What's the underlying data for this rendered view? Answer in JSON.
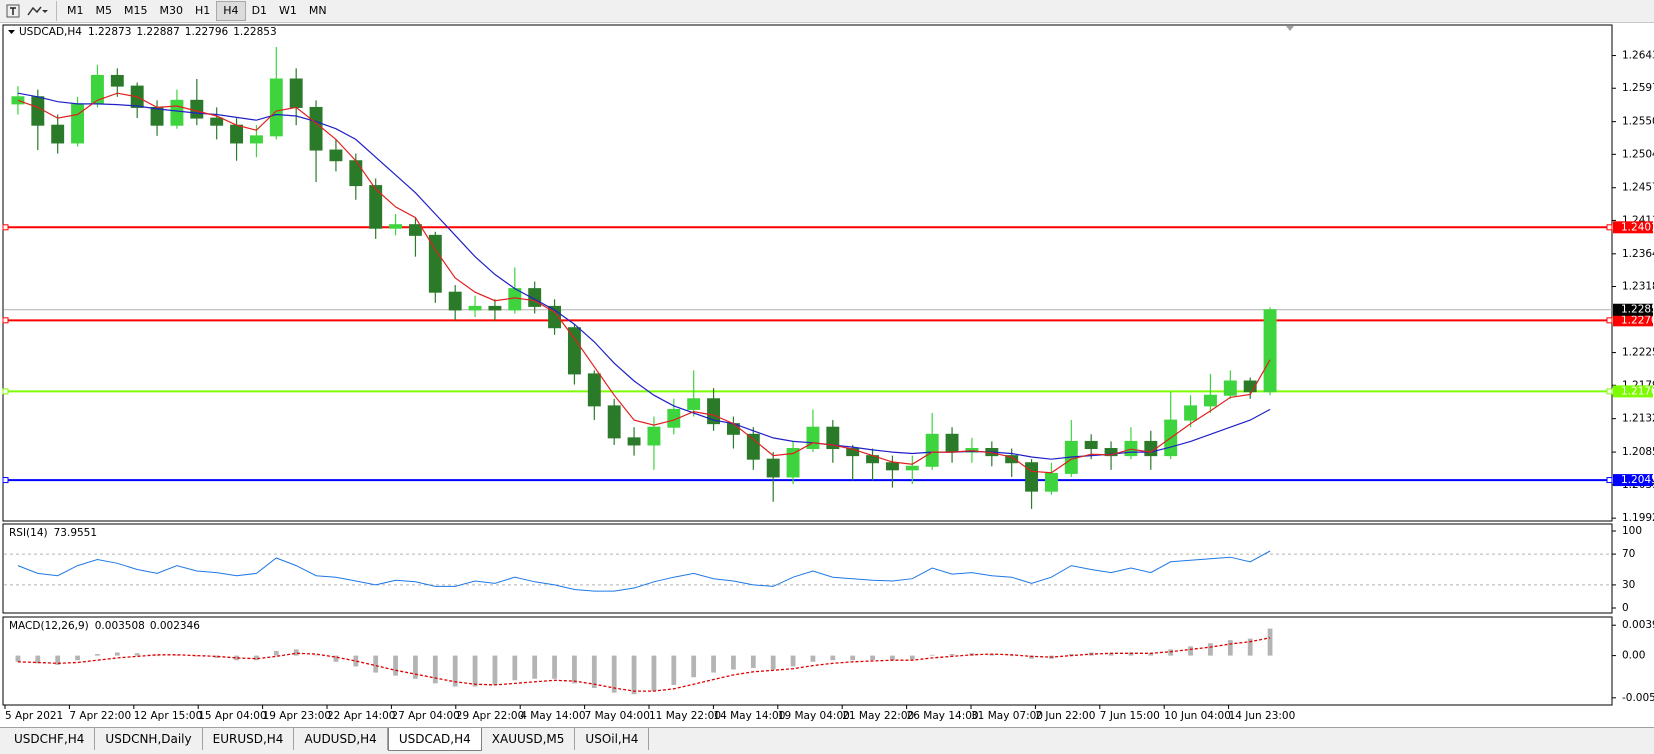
{
  "toolbar": {
    "timeframes": [
      {
        "label": "M1"
      },
      {
        "label": "M5"
      },
      {
        "label": "M15"
      },
      {
        "label": "M30"
      },
      {
        "label": "H1"
      },
      {
        "label": "H4",
        "active": true
      },
      {
        "label": "D1"
      },
      {
        "label": "W1"
      },
      {
        "label": "MN"
      }
    ]
  },
  "chart_data": [
    {
      "type": "candlestick",
      "title": "USDCAD,H4",
      "last_bar": [
        1.22873,
        1.22887,
        1.22796,
        1.22853
      ],
      "up_color": "#3ed43e",
      "down_color": "#2a7a2a",
      "open": [
        1.2575,
        1.2585,
        1.2545,
        1.252,
        1.2575,
        1.2615,
        1.26,
        1.257,
        1.2545,
        1.258,
        1.2555,
        1.2545,
        1.252,
        1.253,
        1.261,
        1.257,
        1.251,
        1.2495,
        1.246,
        1.24,
        1.2405,
        1.239,
        1.231,
        1.2285,
        1.229,
        1.2285,
        1.2315,
        1.229,
        1.226,
        1.2195,
        1.215,
        1.2105,
        1.2095,
        1.212,
        1.2145,
        1.216,
        1.2125,
        1.211,
        1.2075,
        1.205,
        1.209,
        1.212,
        1.209,
        1.208,
        1.207,
        1.206,
        1.2065,
        1.211,
        1.2085,
        1.209,
        1.208,
        1.207,
        1.203,
        1.2055,
        1.21,
        1.209,
        1.208,
        1.21,
        1.208,
        1.213,
        1.215,
        1.2165,
        1.2185,
        1.217
      ],
      "high": [
        1.26,
        1.2595,
        1.256,
        1.2585,
        1.263,
        1.2625,
        1.2605,
        1.258,
        1.2595,
        1.261,
        1.257,
        1.2555,
        1.2545,
        1.2655,
        1.2625,
        1.258,
        1.2525,
        1.2505,
        1.247,
        1.242,
        1.2415,
        1.2395,
        1.232,
        1.2305,
        1.23,
        1.2345,
        1.2325,
        1.23,
        1.2265,
        1.22,
        1.216,
        1.212,
        1.2135,
        1.216,
        1.22,
        1.2175,
        1.2135,
        1.212,
        1.2085,
        1.21,
        1.2145,
        1.213,
        1.2095,
        1.209,
        1.208,
        1.208,
        1.214,
        1.212,
        1.2105,
        1.21,
        1.209,
        1.2075,
        1.207,
        1.213,
        1.211,
        1.21,
        1.212,
        1.2115,
        1.217,
        1.2165,
        1.2195,
        1.22,
        1.219,
        1.22887
      ],
      "low": [
        1.256,
        1.251,
        1.2505,
        1.2515,
        1.257,
        1.2585,
        1.2555,
        1.253,
        1.254,
        1.2545,
        1.2525,
        1.2495,
        1.25,
        1.2525,
        1.2545,
        1.2465,
        1.248,
        1.244,
        1.2385,
        1.239,
        1.236,
        1.2295,
        1.227,
        1.2275,
        1.227,
        1.228,
        1.228,
        1.225,
        1.218,
        1.213,
        1.2095,
        1.208,
        1.206,
        1.211,
        1.2135,
        1.2115,
        1.209,
        1.206,
        1.2015,
        1.204,
        1.2085,
        1.207,
        1.2045,
        1.2045,
        1.2035,
        1.204,
        1.206,
        1.207,
        1.207,
        1.2065,
        1.205,
        1.2005,
        1.2025,
        1.205,
        1.2075,
        1.206,
        1.2075,
        1.206,
        1.2075,
        1.212,
        1.214,
        1.216,
        1.216,
        1.2165
      ],
      "close": [
        1.2585,
        1.2545,
        1.252,
        1.2575,
        1.2615,
        1.26,
        1.257,
        1.2545,
        1.258,
        1.2555,
        1.2545,
        1.252,
        1.253,
        1.261,
        1.257,
        1.251,
        1.2495,
        1.246,
        1.24,
        1.2405,
        1.239,
        1.231,
        1.2285,
        1.229,
        1.2285,
        1.2315,
        1.229,
        1.226,
        1.2195,
        1.215,
        1.2105,
        1.2095,
        1.212,
        1.2145,
        1.216,
        1.2125,
        1.211,
        1.2075,
        1.205,
        1.209,
        1.212,
        1.209,
        1.208,
        1.207,
        1.206,
        1.2065,
        1.211,
        1.2085,
        1.209,
        1.208,
        1.207,
        1.203,
        1.2055,
        1.21,
        1.209,
        1.208,
        1.21,
        1.208,
        1.213,
        1.215,
        1.2165,
        1.2185,
        1.217,
        1.22853
      ],
      "overlays": [
        {
          "color": "#2020c8",
          "values": [
            1.259,
            1.2585,
            1.2578,
            1.2575,
            1.2575,
            1.2574,
            1.2572,
            1.2568,
            1.2565,
            1.2562,
            1.256,
            1.2556,
            1.2552,
            1.256,
            1.2558,
            1.255,
            1.254,
            1.2525,
            1.25,
            1.2475,
            1.245,
            1.242,
            1.239,
            1.236,
            1.2335,
            1.2315,
            1.23,
            1.2285,
            1.2265,
            1.224,
            1.221,
            1.2185,
            1.2165,
            1.215,
            1.214,
            1.213,
            1.2125,
            1.2115,
            1.2105,
            1.21,
            1.2098,
            1.2095,
            1.2092,
            1.2088,
            1.2085,
            1.2083,
            1.2085,
            1.2085,
            1.2086,
            1.2085,
            1.2083,
            1.2078,
            1.2075,
            1.2078,
            1.208,
            1.2082,
            1.2085,
            1.2085,
            1.2092,
            1.21,
            1.211,
            1.212,
            1.213,
            1.2145
          ]
        },
        {
          "color": "#e02020",
          "values": [
            1.258,
            1.257,
            1.2555,
            1.256,
            1.258,
            1.259,
            1.2585,
            1.257,
            1.2572,
            1.2565,
            1.2558,
            1.2545,
            1.2538,
            1.2565,
            1.257,
            1.2548,
            1.2525,
            1.2495,
            1.2455,
            1.243,
            1.2415,
            1.237,
            1.233,
            1.231,
            1.2298,
            1.2302,
            1.2298,
            1.2282,
            1.2245,
            1.2205,
            1.2165,
            1.213,
            1.2123,
            1.213,
            1.2142,
            1.2137,
            1.2125,
            1.2103,
            1.208,
            1.2083,
            1.2098,
            1.2095,
            1.2089,
            1.208,
            1.2071,
            1.2068,
            1.2085,
            1.2085,
            1.2087,
            1.2084,
            1.2078,
            1.2058,
            1.2056,
            1.2075,
            1.2082,
            1.2081,
            1.2089,
            1.2085,
            1.2105,
            1.2125,
            1.2143,
            1.2162,
            1.2166,
            1.2215
          ]
        }
      ],
      "levels": [
        {
          "value": 1.24013,
          "color": "#ff0000"
        },
        {
          "value": 1.22704,
          "color": "#ff0000"
        },
        {
          "value": 1.21704,
          "color": "#7cfc00"
        },
        {
          "value": 1.20456,
          "color": "#0000ff"
        }
      ],
      "ylim": [
        1.1988,
        1.2686
      ],
      "yticks": [
        {
          "value": 1.2643,
          "label": "1.26430"
        },
        {
          "value": 1.2597,
          "label": "1.25970"
        },
        {
          "value": 1.255,
          "label": "1.25500"
        },
        {
          "value": 1.2504,
          "label": "1.25040"
        },
        {
          "value": 1.2457,
          "label": "1.24570"
        },
        {
          "value": 1.2411,
          "label": "1.24110"
        },
        {
          "value": 1.2364,
          "label": "1.23640"
        },
        {
          "value": 1.2318,
          "label": "1.23180"
        },
        {
          "value": 1.2225,
          "label": "1.22250"
        },
        {
          "value": 1.2179,
          "label": "1.21790"
        },
        {
          "value": 1.2132,
          "label": "1.21320"
        },
        {
          "value": 1.2085,
          "label": "1.20850"
        },
        {
          "value": 1.2039,
          "label": "1.20390"
        },
        {
          "value": 1.1992,
          "label": "1.19920"
        }
      ],
      "time_labels": [
        "5 Apr 2021",
        "7 Apr 22:00",
        "12 Apr 15:00",
        "15 Apr 04:00",
        "19 Apr 23:00",
        "22 Apr 14:00",
        "27 Apr 04:00",
        "29 Apr 22:00",
        "4 May 14:00",
        "7 May 04:00",
        "11 May 22:00",
        "14 May 14:00",
        "19 May 04:00",
        "21 May 22:00",
        "26 May 14:00",
        "31 May 07:00",
        "2 Jun 22:00",
        "7 Jun 15:00",
        "10 Jun 04:00",
        "14 Jun 23:00"
      ]
    },
    {
      "type": "line",
      "title": "RSI(14)",
      "readout": [
        73.9551
      ],
      "color": "#1e78e6",
      "values": [
        55,
        45,
        42,
        55,
        63,
        58,
        50,
        45,
        55,
        48,
        46,
        42,
        45,
        65,
        55,
        42,
        40,
        35,
        30,
        36,
        34,
        28,
        28,
        35,
        32,
        40,
        34,
        30,
        24,
        22,
        22,
        26,
        34,
        40,
        45,
        38,
        35,
        30,
        28,
        40,
        48,
        40,
        38,
        36,
        35,
        38,
        52,
        44,
        46,
        42,
        40,
        32,
        40,
        55,
        50,
        46,
        52,
        46,
        60,
        62,
        64,
        66,
        60,
        74
      ],
      "ylim": [
        0,
        100
      ],
      "yticks": [
        100,
        70,
        30,
        0
      ],
      "levels": [
        70,
        30
      ]
    },
    {
      "type": "bar",
      "title": "MACD(12,26,9)",
      "readout": [
        0.003508,
        0.002346
      ],
      "series": [
        {
          "color": "#b4b4b4",
          "values": [
            -0.0008,
            -0.001,
            -0.0012,
            -0.0006,
            0.0002,
            0.0004,
            0.0003,
            0.0,
            0.0001,
            -0.0001,
            -0.0003,
            -0.0006,
            -0.0006,
            0.0006,
            0.0008,
            0.0,
            -0.0008,
            -0.0014,
            -0.0022,
            -0.0026,
            -0.003,
            -0.0036,
            -0.004,
            -0.004,
            -0.0038,
            -0.0032,
            -0.003,
            -0.003,
            -0.0036,
            -0.0042,
            -0.0048,
            -0.005,
            -0.0046,
            -0.0038,
            -0.0028,
            -0.0022,
            -0.0018,
            -0.0016,
            -0.0018,
            -0.0014,
            -0.0008,
            -0.0006,
            -0.0006,
            -0.0006,
            -0.0006,
            -0.0005,
            0.0001,
            0.0002,
            0.0003,
            0.0002,
            0.0,
            -0.0004,
            -0.0004,
            0.0002,
            0.0004,
            0.0003,
            0.0004,
            0.0003,
            0.0008,
            0.0012,
            0.0016,
            0.002,
            0.0022,
            0.0035
          ]
        },
        {
          "type": "line",
          "style": "dashed",
          "color": "#e00000",
          "values": [
            -0.0008,
            -0.0009,
            -0.001,
            -0.0009,
            -0.0006,
            -0.0003,
            -0.0001,
            0.0001,
            0.0001,
            0.0,
            -0.0001,
            -0.0003,
            -0.0004,
            -0.0001,
            0.0003,
            0.0002,
            -0.0002,
            -0.0007,
            -0.0013,
            -0.0019,
            -0.0024,
            -0.0029,
            -0.0034,
            -0.0037,
            -0.0038,
            -0.0036,
            -0.0034,
            -0.0032,
            -0.0033,
            -0.0037,
            -0.0042,
            -0.0046,
            -0.0046,
            -0.0043,
            -0.0037,
            -0.0031,
            -0.0025,
            -0.0021,
            -0.0019,
            -0.0017,
            -0.0013,
            -0.001,
            -0.0008,
            -0.0007,
            -0.0006,
            -0.0006,
            -0.0003,
            -0.0001,
            0.0001,
            0.0002,
            0.0001,
            -0.0001,
            -0.0002,
            0.0,
            0.0002,
            0.0003,
            0.0003,
            0.0003,
            0.0005,
            0.0008,
            0.0011,
            0.0015,
            0.0018,
            0.0023
          ]
        }
      ],
      "ylim": [
        -0.0064,
        0.005
      ],
      "yticks": [
        0.003936,
        {
          "value": 0,
          "label": "0.00"
        },
        -0.00547
      ]
    }
  ],
  "tabs": [
    {
      "label": "USDCHF,H4"
    },
    {
      "label": "USDCNH,Daily"
    },
    {
      "label": "EURUSD,H4"
    },
    {
      "label": "AUDUSD,H4"
    },
    {
      "label": "USDCAD,H4",
      "active": true
    },
    {
      "label": "XAUUSD,M5"
    },
    {
      "label": "USOil,H4"
    }
  ]
}
